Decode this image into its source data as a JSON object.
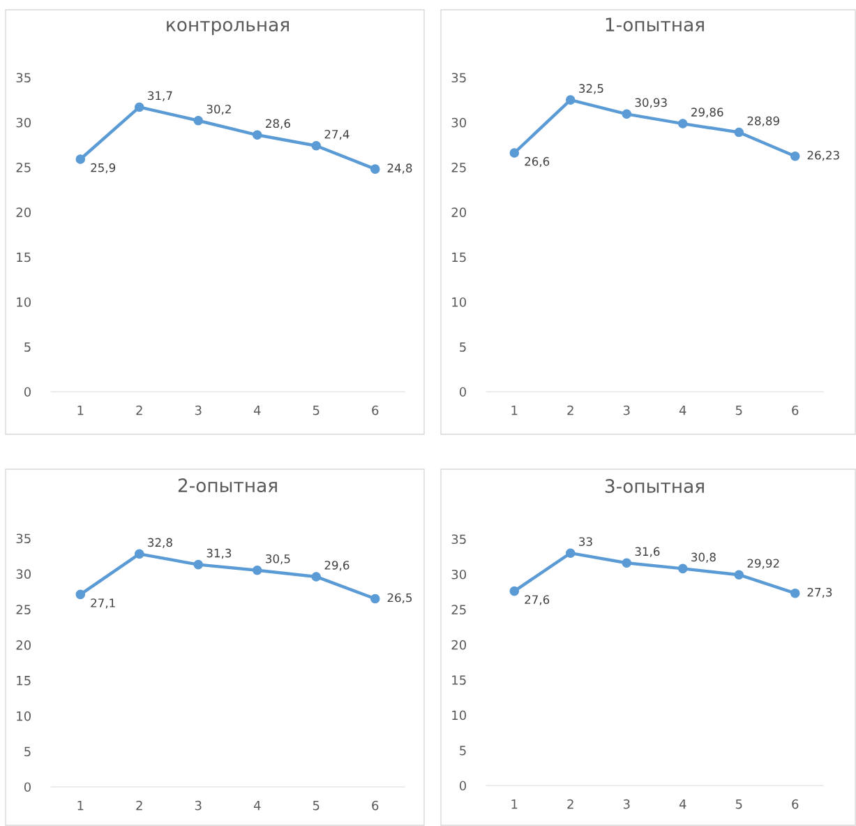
{
  "chart_data": [
    {
      "type": "line",
      "title": "контрольная",
      "categories": [
        "1",
        "2",
        "3",
        "4",
        "5",
        "6"
      ],
      "series": [
        {
          "color": "#5b9bd5",
          "values": [
            25.9,
            31.7,
            30.2,
            28.6,
            27.4,
            24.8
          ],
          "value_labels": [
            "25,9",
            "31,7",
            "30,2",
            "28,6",
            "27,4",
            "24,8"
          ]
        }
      ],
      "ylim": [
        0,
        35
      ],
      "yticks": [
        0,
        5,
        10,
        15,
        20,
        25,
        30,
        35
      ],
      "grid": false,
      "marker": "circle",
      "line_style": "solid"
    },
    {
      "type": "line",
      "title": "1-опытная",
      "categories": [
        "1",
        "2",
        "3",
        "4",
        "5",
        "6"
      ],
      "series": [
        {
          "color": "#5b9bd5",
          "values": [
            26.6,
            32.5,
            30.93,
            29.86,
            28.89,
            26.23
          ],
          "value_labels": [
            "26,6",
            "32,5",
            "30,93",
            "29,86",
            "28,89",
            "26,23"
          ]
        }
      ],
      "ylim": [
        0,
        35
      ],
      "yticks": [
        0,
        5,
        10,
        15,
        20,
        25,
        30,
        35
      ],
      "grid": false,
      "marker": "circle",
      "line_style": "solid"
    },
    {
      "type": "line",
      "title": "2-опытная",
      "categories": [
        "1",
        "2",
        "3",
        "4",
        "5",
        "6"
      ],
      "series": [
        {
          "color": "#5b9bd5",
          "values": [
            27.1,
            32.8,
            31.3,
            30.5,
            29.6,
            26.5
          ],
          "value_labels": [
            "27,1",
            "32,8",
            "31,3",
            "30,5",
            "29,6",
            "26,5"
          ]
        }
      ],
      "ylim": [
        0,
        35
      ],
      "yticks": [
        0,
        5,
        10,
        15,
        20,
        25,
        30,
        35
      ],
      "grid": false,
      "marker": "circle",
      "line_style": "solid"
    },
    {
      "type": "line",
      "title": "3-опытная",
      "categories": [
        "1",
        "2",
        "3",
        "4",
        "5",
        "6"
      ],
      "series": [
        {
          "color": "#5b9bd5",
          "values": [
            27.6,
            33,
            31.6,
            30.8,
            29.92,
            27.3
          ],
          "value_labels": [
            "27,6",
            "33",
            "31,6",
            "30,8",
            "29,92",
            "27,3"
          ]
        }
      ],
      "ylim": [
        0,
        35
      ],
      "yticks": [
        0,
        5,
        10,
        15,
        20,
        25,
        30,
        35
      ],
      "grid": false,
      "marker": "circle",
      "line_style": "solid"
    }
  ]
}
